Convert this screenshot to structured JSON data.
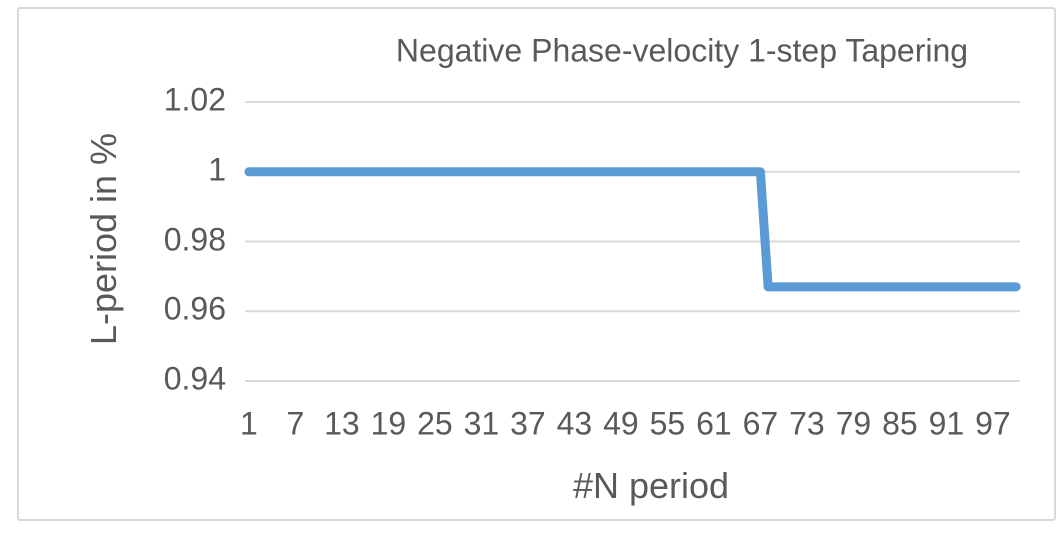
{
  "frame": {
    "background": "#FFFFFF",
    "border_color": "#D9D9D9"
  },
  "colors": {
    "text": "#595959",
    "gridline": "#D9D9D9",
    "frame_border": "#D9D9D9",
    "series_line": "#5B9BD5"
  },
  "chart_data": {
    "type": "line",
    "title": "Negative Phase-velocity 1-step Tapering",
    "xlabel": "#N period",
    "ylabel": "L-period in %",
    "x_tick_labels": [
      "1",
      "7",
      "13",
      "19",
      "25",
      "31",
      "37",
      "43",
      "49",
      "55",
      "61",
      "67",
      "73",
      "79",
      "85",
      "91",
      "97"
    ],
    "x_tick_values": [
      1,
      7,
      13,
      19,
      25,
      31,
      37,
      43,
      49,
      55,
      61,
      67,
      73,
      79,
      85,
      91,
      97
    ],
    "y_tick_labels": [
      "1.02",
      "1",
      "0.98",
      "0.96",
      "0.94"
    ],
    "y_tick_values": [
      1.02,
      1,
      0.98,
      0.96,
      0.94
    ],
    "xlim": [
      1,
      100
    ],
    "ylim": [
      0.94,
      1.02
    ],
    "grid": "horizontal-only",
    "legend": "none",
    "series": [
      {
        "name": "L-period",
        "color": "#5B9BD5",
        "line_width": 9,
        "description": "Piecewise-constant step line: value 1.0 for n = 1 to 67, drops in one step to 0.967 for n = 68 to 100",
        "points": [
          {
            "x": 1,
            "y": 1.0
          },
          {
            "x": 67,
            "y": 1.0
          },
          {
            "x": 68,
            "y": 0.967
          },
          {
            "x": 100,
            "y": 0.967
          }
        ]
      }
    ]
  }
}
